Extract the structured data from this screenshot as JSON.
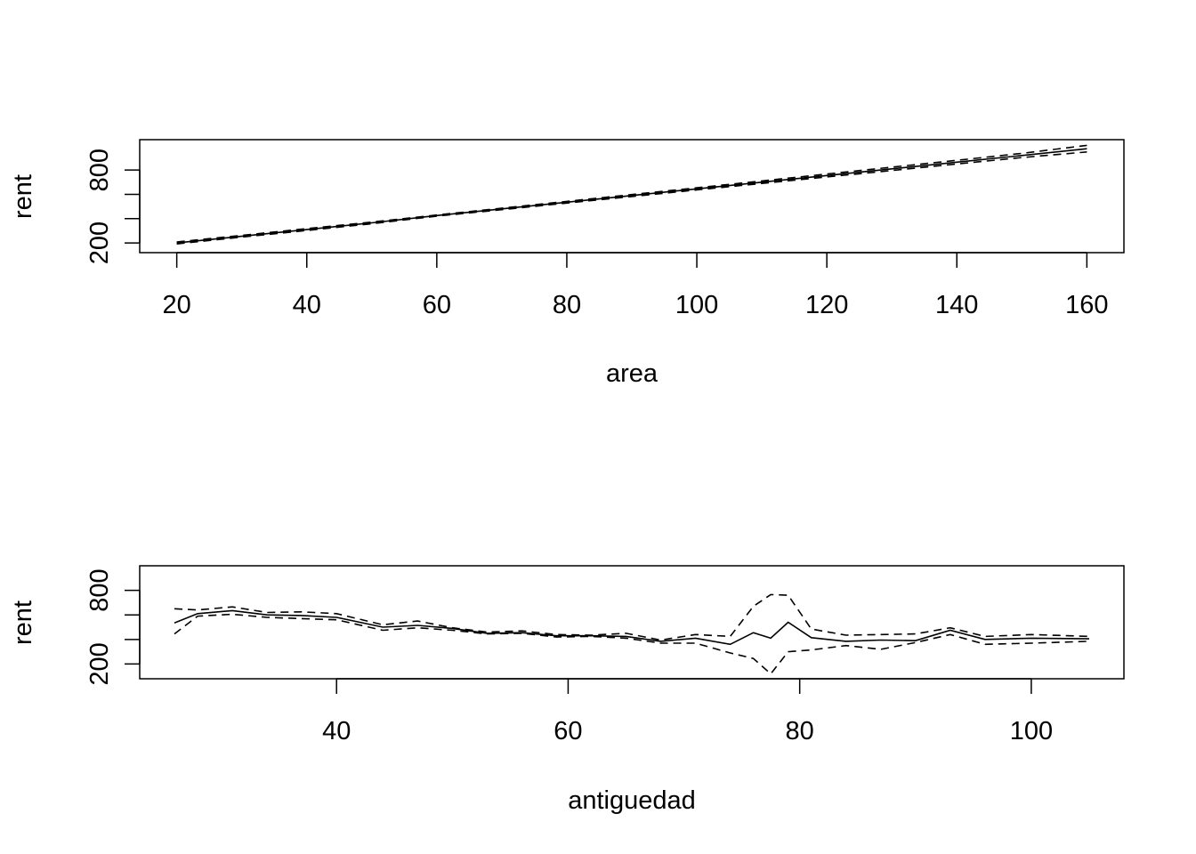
{
  "chart_data": [
    {
      "type": "line",
      "title": "",
      "xlabel": "area",
      "ylabel": "rent",
      "xlim": [
        14.3,
        165.7
      ],
      "ylim": [
        120,
        1050
      ],
      "grid": false,
      "xticks": [
        20,
        40,
        60,
        80,
        100,
        120,
        140,
        160
      ],
      "xtick_labels": [
        "20",
        "40",
        "60",
        "80",
        "100",
        "120",
        "140",
        "160"
      ],
      "yticks": [
        200,
        400,
        600,
        800
      ],
      "ytick_labels": [
        "200",
        "",
        "",
        "800"
      ],
      "x": [
        20,
        30,
        40,
        50,
        60,
        70,
        80,
        90,
        100,
        110,
        120,
        130,
        140,
        150,
        160
      ],
      "series": [
        {
          "style": "solid",
          "values": [
            200,
            255,
            310,
            365,
            425,
            480,
            535,
            590,
            645,
            700,
            755,
            810,
            865,
            920,
            975
          ]
        },
        {
          "style": "dashed",
          "values": [
            208,
            262,
            318,
            372,
            430,
            486,
            542,
            598,
            654,
            710,
            767,
            824,
            880,
            937,
            1003
          ]
        },
        {
          "style": "dashed",
          "values": [
            192,
            248,
            302,
            358,
            420,
            474,
            528,
            582,
            636,
            690,
            743,
            796,
            850,
            903,
            949
          ]
        }
      ]
    },
    {
      "type": "line",
      "title": "",
      "xlabel": "antiguedad",
      "ylabel": "rent",
      "xlim": [
        23.0,
        108.0
      ],
      "ylim": [
        80,
        1000
      ],
      "grid": false,
      "xticks": [
        40,
        60,
        80,
        100
      ],
      "xtick_labels": [
        "40",
        "60",
        "80",
        "100"
      ],
      "yticks": [
        200,
        400,
        600,
        800
      ],
      "ytick_labels": [
        "200",
        "",
        "",
        "800"
      ],
      "x": [
        26,
        28,
        31,
        34,
        37,
        40,
        44,
        47,
        50,
        53,
        56,
        59,
        62,
        65,
        68,
        71,
        74,
        76,
        77.5,
        79,
        81,
        84,
        87,
        90,
        93,
        96,
        100,
        105
      ],
      "series": [
        {
          "style": "solid",
          "values": [
            535,
            610,
            635,
            600,
            595,
            580,
            500,
            515,
            490,
            450,
            455,
            430,
            430,
            425,
            385,
            410,
            360,
            455,
            410,
            540,
            415,
            385,
            395,
            390,
            475,
            400,
            410,
            405
          ]
        },
        {
          "style": "dashed",
          "values": [
            650,
            640,
            665,
            620,
            625,
            610,
            520,
            550,
            495,
            460,
            470,
            440,
            435,
            450,
            395,
            440,
            425,
            670,
            765,
            760,
            485,
            435,
            440,
            445,
            495,
            425,
            440,
            425
          ]
        },
        {
          "style": "dashed",
          "values": [
            445,
            590,
            605,
            580,
            570,
            560,
            475,
            495,
            475,
            445,
            450,
            420,
            425,
            410,
            370,
            370,
            290,
            245,
            120,
            300,
            315,
            350,
            320,
            375,
            440,
            360,
            370,
            385
          ]
        }
      ]
    }
  ]
}
